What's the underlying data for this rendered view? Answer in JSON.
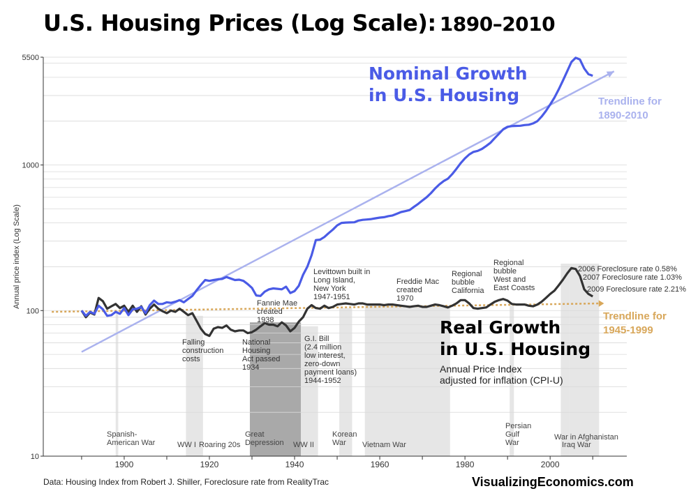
{
  "title": {
    "main": "U.S. Housing Prices (Log Scale):",
    "years": "1890–2010"
  },
  "footer": {
    "source": "Data: Housing Index from Robert J. Shiller, Foreclosure rate from RealityTrac",
    "brand_part1": "Visualizing",
    "brand_part2": "Economics.com"
  },
  "colors": {
    "nominal": "#4a5be6",
    "real": "#333333",
    "trend_nominal": "#aab2ee",
    "trend_real": "#d8a75a",
    "event_light": "#e6e6e6",
    "event_dark": "#a9a9a9"
  },
  "chart_data": {
    "type": "line",
    "title": "U.S. Housing Prices (Log Scale): 1890–2010",
    "ylabel": "Annual price index (Log Scale)",
    "xlabel": "",
    "yscale": "log",
    "xlim": [
      1881,
      2018
    ],
    "ylim": [
      10,
      5500
    ],
    "x_ticks": [
      1900,
      1920,
      1940,
      1960,
      1980,
      2000
    ],
    "y_ticks": [
      10,
      100,
      1000,
      5500
    ],
    "grid": "horizontal",
    "series": [
      {
        "name": "Nominal Growth in U.S. Housing",
        "label_lines": [
          "Nominal Growth",
          "in U.S. Housing"
        ],
        "points": [
          [
            1890,
            100
          ],
          [
            1891,
            92
          ],
          [
            1892,
            98
          ],
          [
            1893,
            95
          ],
          [
            1894,
            108
          ],
          [
            1895,
            102
          ],
          [
            1896,
            92
          ],
          [
            1897,
            93
          ],
          [
            1898,
            98
          ],
          [
            1899,
            95
          ],
          [
            1900,
            104
          ],
          [
            1901,
            93
          ],
          [
            1902,
            102
          ],
          [
            1903,
            103
          ],
          [
            1904,
            106
          ],
          [
            1905,
            96
          ],
          [
            1906,
            109
          ],
          [
            1907,
            117
          ],
          [
            1908,
            111
          ],
          [
            1909,
            111
          ],
          [
            1910,
            114
          ],
          [
            1911,
            113
          ],
          [
            1912,
            115
          ],
          [
            1913,
            118
          ],
          [
            1914,
            114
          ],
          [
            1915,
            120
          ],
          [
            1916,
            126
          ],
          [
            1917,
            138
          ],
          [
            1918,
            150
          ],
          [
            1919,
            162
          ],
          [
            1920,
            160
          ],
          [
            1921,
            162
          ],
          [
            1922,
            164
          ],
          [
            1923,
            165
          ],
          [
            1924,
            170
          ],
          [
            1925,
            166
          ],
          [
            1926,
            162
          ],
          [
            1927,
            163
          ],
          [
            1928,
            160
          ],
          [
            1929,
            152
          ],
          [
            1930,
            143
          ],
          [
            1931,
            127
          ],
          [
            1932,
            126
          ],
          [
            1933,
            135
          ],
          [
            1934,
            140
          ],
          [
            1935,
            142
          ],
          [
            1936,
            141
          ],
          [
            1937,
            140
          ],
          [
            1938,
            146
          ],
          [
            1939,
            132
          ],
          [
            1940,
            136
          ],
          [
            1941,
            148
          ],
          [
            1942,
            176
          ],
          [
            1943,
            200
          ],
          [
            1944,
            240
          ],
          [
            1945,
            305
          ],
          [
            1946,
            307
          ],
          [
            1947,
            320
          ],
          [
            1948,
            340
          ],
          [
            1949,
            360
          ],
          [
            1950,
            385
          ],
          [
            1951,
            400
          ],
          [
            1952,
            402
          ],
          [
            1953,
            403
          ],
          [
            1954,
            404
          ],
          [
            1955,
            415
          ],
          [
            1956,
            420
          ],
          [
            1957,
            422
          ],
          [
            1958,
            425
          ],
          [
            1959,
            430
          ],
          [
            1960,
            435
          ],
          [
            1961,
            438
          ],
          [
            1962,
            445
          ],
          [
            1963,
            450
          ],
          [
            1964,
            462
          ],
          [
            1965,
            475
          ],
          [
            1966,
            482
          ],
          [
            1967,
            490
          ],
          [
            1968,
            515
          ],
          [
            1969,
            540
          ],
          [
            1970,
            570
          ],
          [
            1971,
            600
          ],
          [
            1972,
            640
          ],
          [
            1973,
            690
          ],
          [
            1974,
            735
          ],
          [
            1975,
            775
          ],
          [
            1976,
            805
          ],
          [
            1977,
            865
          ],
          [
            1978,
            940
          ],
          [
            1979,
            1030
          ],
          [
            1980,
            1110
          ],
          [
            1981,
            1180
          ],
          [
            1982,
            1230
          ],
          [
            1983,
            1250
          ],
          [
            1984,
            1290
          ],
          [
            1985,
            1350
          ],
          [
            1986,
            1420
          ],
          [
            1987,
            1530
          ],
          [
            1988,
            1640
          ],
          [
            1989,
            1760
          ],
          [
            1990,
            1830
          ],
          [
            1991,
            1850
          ],
          [
            1992,
            1855
          ],
          [
            1993,
            1860
          ],
          [
            1994,
            1880
          ],
          [
            1995,
            1890
          ],
          [
            1996,
            1930
          ],
          [
            1997,
            2000
          ],
          [
            1998,
            2150
          ],
          [
            1999,
            2350
          ],
          [
            2000,
            2600
          ],
          [
            2001,
            2900
          ],
          [
            2002,
            3300
          ],
          [
            2003,
            3800
          ],
          [
            2004,
            4400
          ],
          [
            2005,
            5100
          ],
          [
            2006,
            5450
          ],
          [
            2007,
            5300
          ],
          [
            2008,
            4600
          ],
          [
            2009,
            4200
          ],
          [
            2010,
            4100
          ]
        ]
      },
      {
        "name": "Real Growth in U.S. Housing",
        "label_lines": [
          "Real Growth",
          "in U.S. Housing"
        ],
        "sublabel_lines": [
          "Annual Price Index",
          "adjusted for inflation (CPI-U)"
        ],
        "points": [
          [
            1890,
            100
          ],
          [
            1891,
            90
          ],
          [
            1892,
            97
          ],
          [
            1893,
            94
          ],
          [
            1894,
            122
          ],
          [
            1895,
            116
          ],
          [
            1896,
            103
          ],
          [
            1897,
            107
          ],
          [
            1898,
            111
          ],
          [
            1899,
            104
          ],
          [
            1900,
            108
          ],
          [
            1901,
            98
          ],
          [
            1902,
            108
          ],
          [
            1903,
            98
          ],
          [
            1904,
            107
          ],
          [
            1905,
            94
          ],
          [
            1906,
            103
          ],
          [
            1907,
            110
          ],
          [
            1908,
            103
          ],
          [
            1909,
            99
          ],
          [
            1910,
            96
          ],
          [
            1911,
            100
          ],
          [
            1912,
            98
          ],
          [
            1913,
            103
          ],
          [
            1914,
            98
          ],
          [
            1915,
            93
          ],
          [
            1916,
            96
          ],
          [
            1917,
            85
          ],
          [
            1918,
            75
          ],
          [
            1919,
            69
          ],
          [
            1920,
            67
          ],
          [
            1921,
            75
          ],
          [
            1922,
            77
          ],
          [
            1923,
            76
          ],
          [
            1924,
            79
          ],
          [
            1925,
            74
          ],
          [
            1926,
            72
          ],
          [
            1927,
            73
          ],
          [
            1928,
            73
          ],
          [
            1929,
            70
          ],
          [
            1930,
            71
          ],
          [
            1931,
            74
          ],
          [
            1932,
            78
          ],
          [
            1933,
            82
          ],
          [
            1934,
            80
          ],
          [
            1935,
            80
          ],
          [
            1936,
            78
          ],
          [
            1937,
            83
          ],
          [
            1938,
            79
          ],
          [
            1939,
            72
          ],
          [
            1940,
            76
          ],
          [
            1941,
            84
          ],
          [
            1942,
            90
          ],
          [
            1943,
            103
          ],
          [
            1944,
            109
          ],
          [
            1945,
            104
          ],
          [
            1946,
            103
          ],
          [
            1947,
            108
          ],
          [
            1948,
            104
          ],
          [
            1949,
            106
          ],
          [
            1950,
            110
          ],
          [
            1951,
            111
          ],
          [
            1952,
            112
          ],
          [
            1953,
            111
          ],
          [
            1954,
            110
          ],
          [
            1955,
            112
          ],
          [
            1956,
            112
          ],
          [
            1957,
            110
          ],
          [
            1958,
            110
          ],
          [
            1959,
            110
          ],
          [
            1960,
            110
          ],
          [
            1961,
            109
          ],
          [
            1962,
            110
          ],
          [
            1963,
            110
          ],
          [
            1964,
            109
          ],
          [
            1965,
            108
          ],
          [
            1966,
            107
          ],
          [
            1967,
            106
          ],
          [
            1968,
            107
          ],
          [
            1969,
            108
          ],
          [
            1970,
            106
          ],
          [
            1971,
            106
          ],
          [
            1972,
            108
          ],
          [
            1973,
            110
          ],
          [
            1974,
            109
          ],
          [
            1975,
            107
          ],
          [
            1976,
            105
          ],
          [
            1977,
            108
          ],
          [
            1978,
            112
          ],
          [
            1979,
            118
          ],
          [
            1980,
            118
          ],
          [
            1981,
            112
          ],
          [
            1982,
            104
          ],
          [
            1983,
            103
          ],
          [
            1984,
            104
          ],
          [
            1985,
            105
          ],
          [
            1986,
            110
          ],
          [
            1987,
            115
          ],
          [
            1988,
            118
          ],
          [
            1989,
            120
          ],
          [
            1990,
            117
          ],
          [
            1991,
            111
          ],
          [
            1992,
            110
          ],
          [
            1993,
            110
          ],
          [
            1994,
            110
          ],
          [
            1995,
            108
          ],
          [
            1996,
            107
          ],
          [
            1997,
            110
          ],
          [
            1998,
            115
          ],
          [
            1999,
            122
          ],
          [
            2000,
            130
          ],
          [
            2001,
            137
          ],
          [
            2002,
            149
          ],
          [
            2003,
            163
          ],
          [
            2004,
            180
          ],
          [
            2005,
            196
          ],
          [
            2006,
            193
          ],
          [
            2007,
            173
          ],
          [
            2008,
            140
          ],
          [
            2009,
            130
          ],
          [
            2010,
            125
          ]
        ]
      }
    ],
    "trendlines": [
      {
        "name": "Trendline for 1890-2010",
        "label_lines": [
          "Trendline for",
          "1890-2010"
        ],
        "from": [
          1890,
          52
        ],
        "to": [
          2015,
          4400
        ]
      },
      {
        "name": "Trendline for 1945-1999",
        "label_lines": [
          "Trendline for",
          "1945-1999"
        ],
        "from": [
          1883,
          98
        ],
        "to": [
          2012,
          112
        ]
      }
    ],
    "event_bands": [
      {
        "start": 1898.0,
        "end": 1898.6,
        "shade": "light",
        "label_lines": [
          "Spanish-",
          "American War"
        ]
      },
      {
        "start": 1914.5,
        "end": 1918.5,
        "shade": "light",
        "label_lines": [
          "WW I"
        ]
      },
      {
        "start": 1929.5,
        "end": 1941.5,
        "shade": "dark",
        "label_lines": [
          "Great",
          "Depression"
        ]
      },
      {
        "start": 1941.5,
        "end": 1945.5,
        "shade": "light",
        "label_lines": [
          "WW II"
        ]
      },
      {
        "start": 1950.5,
        "end": 1953.5,
        "shade": "light",
        "label_lines": [
          "Korean",
          "War"
        ]
      },
      {
        "start": 1956.5,
        "end": 1976.5,
        "shade": "light",
        "label_lines": [
          "Vietnam War"
        ]
      },
      {
        "start": 1990.5,
        "end": 1991.5,
        "shade": "light",
        "label_lines": [
          "Persian",
          "Gulf",
          "War"
        ]
      },
      {
        "start": 2002.5,
        "end": 2004.5,
        "shade": "light",
        "label_lines": [
          "Iraq War"
        ]
      },
      {
        "start": 2004.5,
        "end": 2011.5,
        "shade": "light",
        "label_lines": [
          "War in Afghanistan"
        ]
      }
    ],
    "period_labels": [
      {
        "text": "Roaring 20s",
        "year": 1920
      },
      {
        "text": "Falling construction costs",
        "lines": [
          "Falling",
          "construction",
          "costs"
        ],
        "year": 1914.5
      }
    ],
    "annotations": [
      {
        "lines": [
          "Fannie Mae",
          "created",
          "1938"
        ]
      },
      {
        "lines": [
          "National",
          "Housing",
          "Act passed",
          "1934"
        ]
      },
      {
        "lines": [
          "G.I. Bill",
          "(2.4 million",
          "low interest,",
          "zero-down",
          "payment loans)",
          "1944-1952"
        ]
      },
      {
        "lines": [
          "Levittown built in",
          "Long Island,",
          "New York",
          "1947-1951"
        ]
      },
      {
        "lines": [
          "Freddie Mac",
          "created",
          "1970"
        ]
      },
      {
        "lines": [
          "Regional",
          "bubble",
          "California"
        ]
      },
      {
        "lines": [
          "Regional",
          "bubble",
          "West and",
          "East Coasts"
        ]
      },
      {
        "lines": [
          "2006 Foreclosure rate 0.58%"
        ]
      },
      {
        "lines": [
          "2007 Foreclosure rate 1.03%"
        ]
      },
      {
        "lines": [
          "2009 Foreclosure rate 2.21%"
        ]
      }
    ]
  }
}
